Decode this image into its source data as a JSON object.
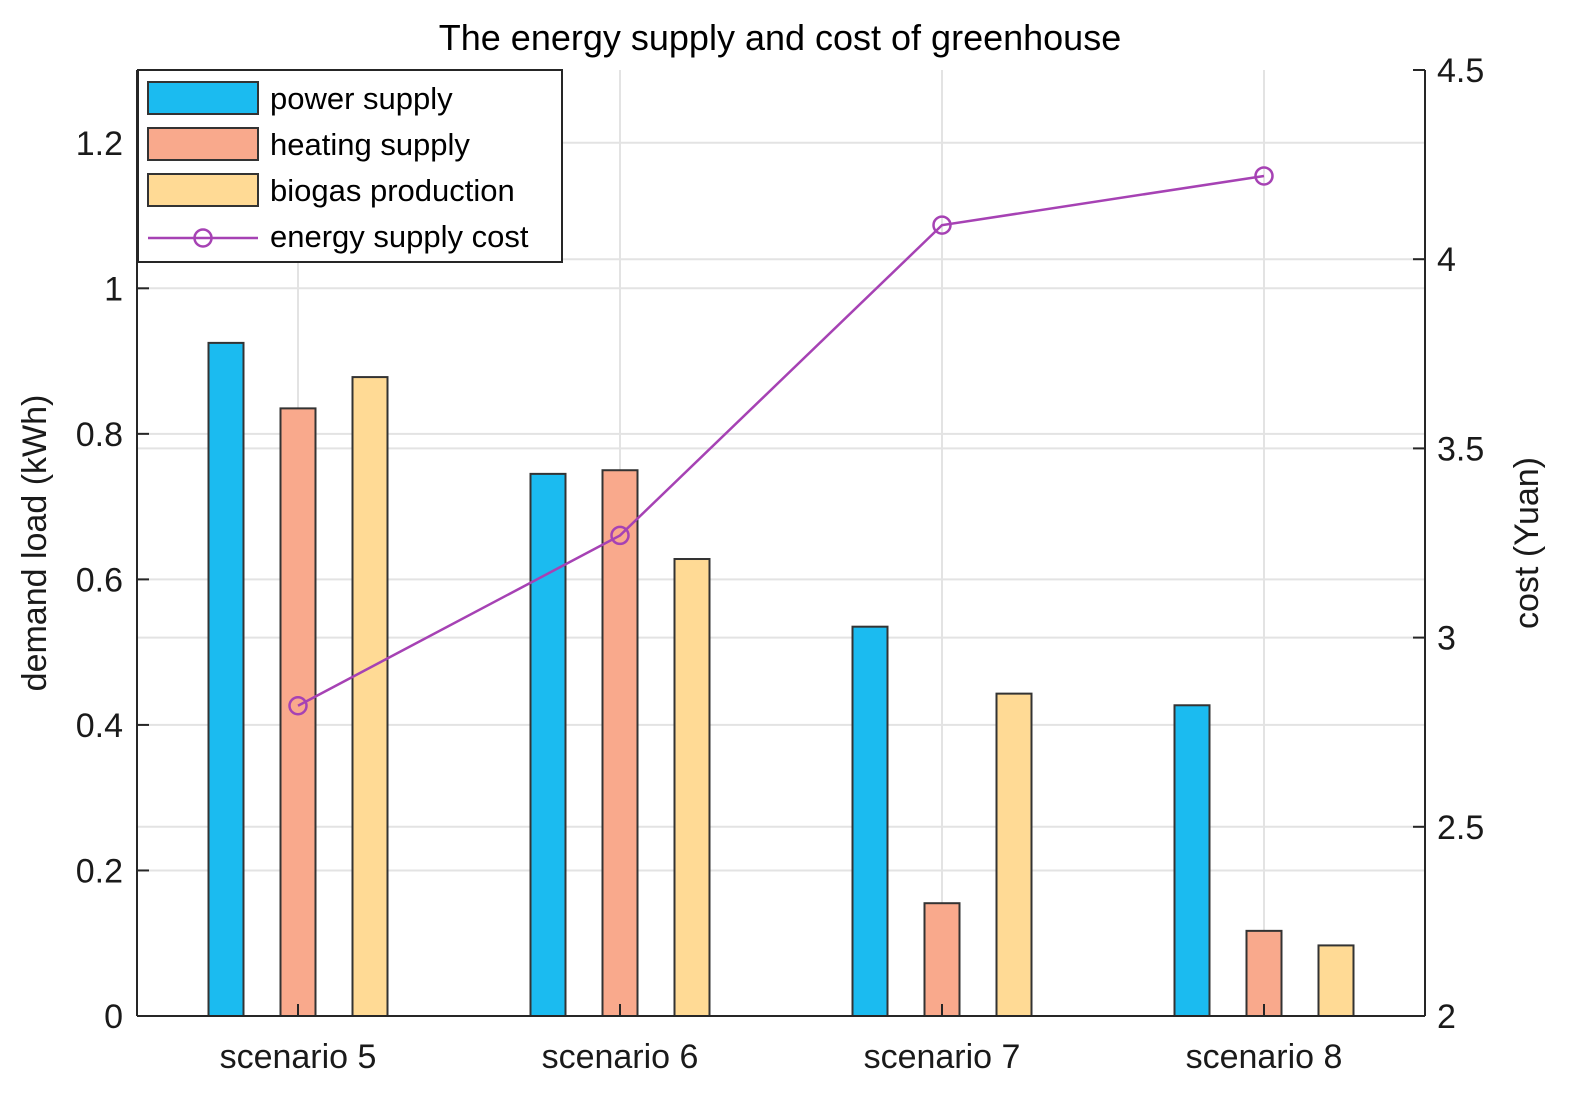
{
  "chart_data": {
    "type": "bar",
    "title": "The energy supply and cost of greenhouse",
    "categories": [
      "scenario 5",
      "scenario 6",
      "scenario 7",
      "scenario 8"
    ],
    "ylabel_left": "demand load (kWh)",
    "ylabel_right": "cost (Yuan)",
    "ylim_left": [
      0,
      1.3
    ],
    "ylim_right": [
      2,
      4.5
    ],
    "yticks_left": [
      "0",
      "0.2",
      "0.4",
      "0.6",
      "0.8",
      "1",
      "1.2"
    ],
    "yticks_right": [
      "2",
      "2.5",
      "3",
      "3.5",
      "4",
      "4.5"
    ],
    "grid": true,
    "legend_position": "top-left",
    "series": [
      {
        "name": "power supply",
        "axis": "left",
        "kind": "bar",
        "color": "#1BBBF0",
        "values": [
          0.925,
          0.745,
          0.535,
          0.427
        ]
      },
      {
        "name": "heating supply",
        "axis": "left",
        "kind": "bar",
        "color": "#F9A98C",
        "values": [
          0.835,
          0.75,
          0.155,
          0.117
        ]
      },
      {
        "name": "biogas production",
        "axis": "left",
        "kind": "bar",
        "color": "#FFDA95",
        "values": [
          0.878,
          0.628,
          0.443,
          0.097
        ]
      },
      {
        "name": "energy supply cost",
        "axis": "right",
        "kind": "line",
        "color": "#A642B4",
        "values": [
          2.82,
          3.27,
          4.09,
          4.22
        ]
      }
    ]
  }
}
